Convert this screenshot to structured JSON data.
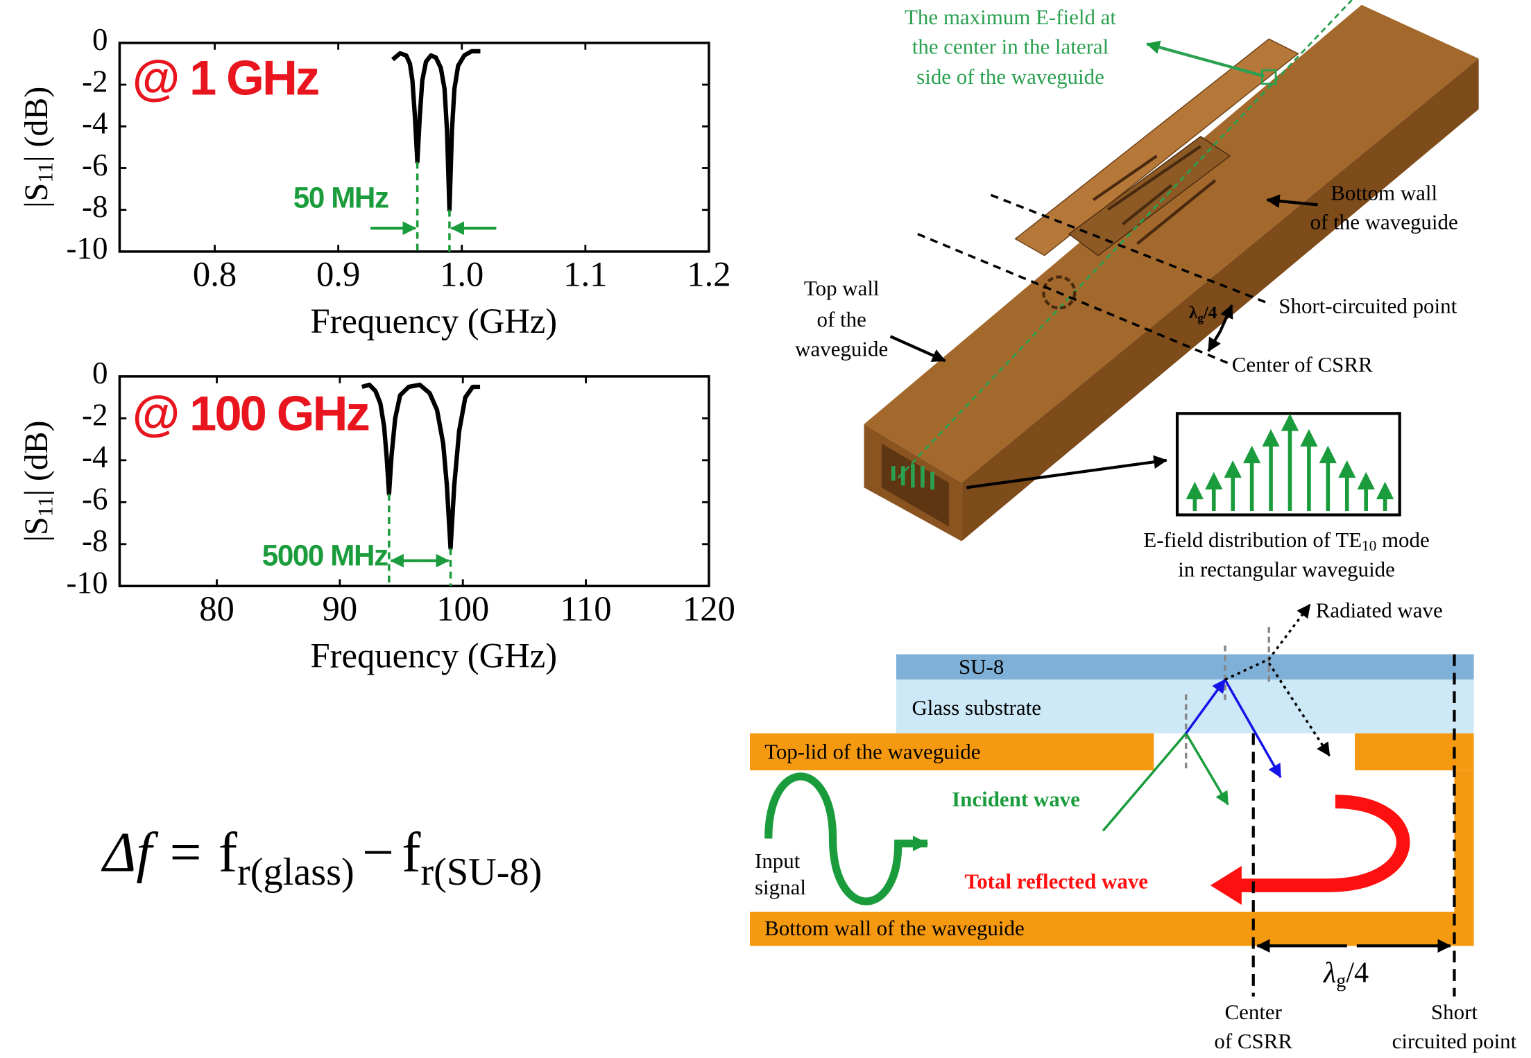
{
  "chart_data": [
    {
      "type": "line",
      "x_label": "Frequency (GHz)",
      "y_label": {
        "pre": "|S",
        "sub": "11",
        "post": "| (dB)"
      },
      "x": [
        0.944,
        0.95,
        0.955,
        0.958,
        0.96,
        0.962,
        0.964,
        0.966,
        0.968,
        0.971,
        0.975,
        0.979,
        0.983,
        0.986,
        0.988,
        0.99,
        0.992,
        0.994,
        0.997,
        1.002,
        1.008,
        1.015
      ],
      "series": [
        {
          "color": "#000000",
          "values": [
            -0.8,
            -0.5,
            -0.6,
            -1.0,
            -1.8,
            -3.5,
            -5.7,
            -3.5,
            -1.8,
            -0.9,
            -0.6,
            -0.7,
            -1.2,
            -2.2,
            -4.2,
            -8.0,
            -4.2,
            -2.2,
            -1.1,
            -0.6,
            -0.4,
            -0.4
          ]
        }
      ],
      "xlim": [
        0.723,
        1.2
      ],
      "xticks": [
        0.8,
        0.9,
        {
          "value": 1,
          "label": "1.0"
        },
        1.1,
        1.2
      ],
      "ylim": [
        -10,
        0
      ],
      "yticks": [
        0,
        -2,
        -4,
        -6,
        -8,
        -10
      ],
      "annotations": [
        "@ 1 GHz",
        "50 MHz"
      ]
    },
    {
      "type": "line",
      "x_label": "Frequency (GHz)",
      "y_label": {
        "pre": "|S",
        "sub": "11",
        "post": "| (dB)"
      },
      "x": [
        91.8,
        92.4,
        92.9,
        93.3,
        93.6,
        93.8,
        94.0,
        94.2,
        94.5,
        94.9,
        95.6,
        96.5,
        97.3,
        97.9,
        98.4,
        98.7,
        99.0,
        99.3,
        99.7,
        100.2,
        100.8,
        101.4
      ],
      "series": [
        {
          "color": "#000000",
          "values": [
            -0.5,
            -0.4,
            -0.7,
            -1.3,
            -2.4,
            -3.8,
            -5.6,
            -3.8,
            -2.0,
            -0.9,
            -0.5,
            -0.4,
            -0.8,
            -1.6,
            -3.2,
            -5.2,
            -8.2,
            -5.2,
            -2.6,
            -1.0,
            -0.5,
            -0.5
          ]
        }
      ],
      "xlim": [
        72.1,
        120
      ],
      "xticks": [
        80,
        90,
        100,
        110,
        120
      ],
      "ylim": [
        -10,
        0
      ],
      "yticks": [
        0,
        -2,
        -4,
        -6,
        -8,
        -10
      ],
      "annotations": [
        "@ 100 GHz",
        "5000 MHz"
      ]
    }
  ],
  "equation": {
    "lhs": "Δf =",
    "f1": "f",
    "sub1": "r(glass)",
    "minus": "−",
    "f2": "f",
    "sub2": "r(SU-8)"
  },
  "waveguide": {
    "max_field": [
      "The maximum E-field at",
      "the center in the lateral",
      "side of the waveguide"
    ],
    "bottom_wall": [
      "Bottom wall",
      "of the waveguide"
    ],
    "top_wall": [
      "Top wall",
      "of the",
      "waveguide"
    ],
    "short_point": "Short-circuited point",
    "center": "Center of CSRR",
    "quarter": {
      "pre": "λ",
      "sub": "g",
      "post": "/4"
    },
    "mode": {
      "pre": "E-field distribution of TE",
      "sub": "10",
      "post": " mode",
      "line2": "in rectangular waveguide"
    }
  },
  "cross_section": {
    "radiated": "Radiated wave",
    "su8": "SU-8",
    "glass": "Glass substrate",
    "top_lid": "Top-lid of the waveguide",
    "incident": "Incident wave",
    "input": [
      "Input",
      "signal"
    ],
    "reflected": "Total reflected wave",
    "bottom_wall": "Bottom wall of the waveguide",
    "quarter": {
      "pre": "λ",
      "sub": "g",
      "post": "/4"
    },
    "center": [
      "Center",
      "of CSRR"
    ],
    "short": [
      "Short",
      "circuited point"
    ]
  }
}
